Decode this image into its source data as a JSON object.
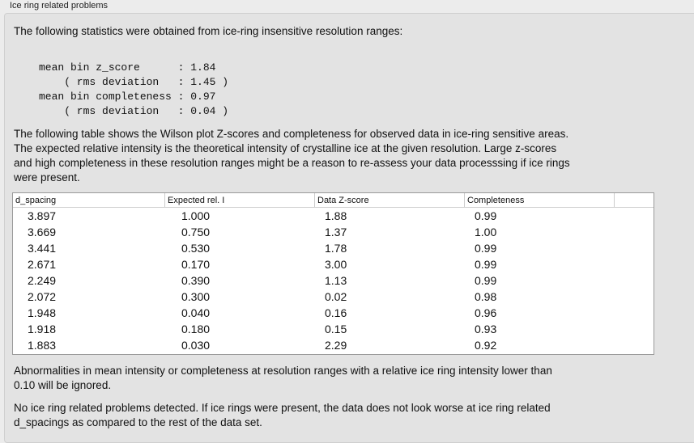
{
  "group_title": "Ice ring related problems",
  "intro": "The following statistics were obtained from ice-ring insensitive resolution ranges:",
  "stats": [
    "mean bin z_score      : 1.84",
    "    ( rms deviation   : 1.45 )",
    "mean bin completeness : 0.97",
    "    ( rms deviation   : 0.04 )"
  ],
  "description": [
    "The following table shows the Wilson plot Z-scores and completeness for observed data in ice-ring sensitive areas.",
    "The expected relative intensity is the theoretical intensity of crystalline ice at the given resolution. Large z-scores",
    "and high completeness in these resolution ranges might be a reason to re-assess your data processsing if ice rings",
    "were present."
  ],
  "table": {
    "columns": [
      "d_spacing",
      "Expected rel. I",
      "Data Z-score",
      "Completeness"
    ],
    "rows": [
      [
        "3.897",
        "1.000",
        "1.88",
        "0.99"
      ],
      [
        "3.669",
        "0.750",
        "1.37",
        "1.00"
      ],
      [
        "3.441",
        "0.530",
        "1.78",
        "0.99"
      ],
      [
        "2.671",
        "0.170",
        "3.00",
        "0.99"
      ],
      [
        "2.249",
        "0.390",
        "1.13",
        "0.99"
      ],
      [
        "2.072",
        "0.300",
        "0.02",
        "0.98"
      ],
      [
        "1.948",
        "0.040",
        "0.16",
        "0.96"
      ],
      [
        "1.918",
        "0.180",
        "0.15",
        "0.93"
      ],
      [
        "1.883",
        "0.030",
        "2.29",
        "0.92"
      ]
    ]
  },
  "note": [
    "Abnormalities in mean intensity or completeness at resolution ranges with a relative ice ring intensity lower than",
    "0.10 will be ignored."
  ],
  "conclusion": [
    "No ice ring related problems detected. If ice rings were present, the data does not look worse at ice ring related",
    "d_spacings as compared to the rest of the data set."
  ]
}
